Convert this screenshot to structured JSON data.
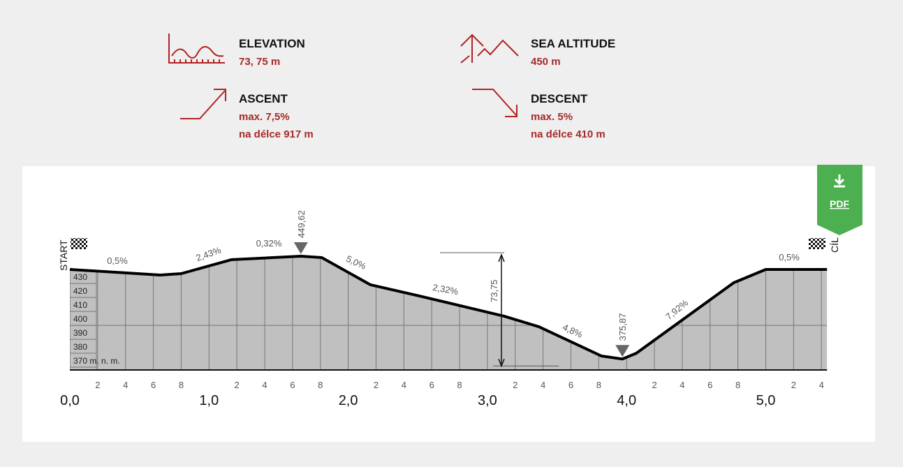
{
  "stats": [
    {
      "title": "ELEVATION",
      "lines": [
        "73, 75 m"
      ]
    },
    {
      "title": "SEA ALTITUDE",
      "lines": [
        "450 m"
      ]
    },
    {
      "title": "ASCENT",
      "lines": [
        "max. 7,5%",
        "na délce 917 m"
      ]
    },
    {
      "title": "DESCENT",
      "lines": [
        "max. 5%",
        "na délce 410 m"
      ]
    }
  ],
  "pdf_button": "PDF",
  "chart_data": {
    "type": "area",
    "start_label": "START",
    "finish_label": "CÍL",
    "x": [
      0,
      0.65,
      0.8,
      1.16,
      1.66,
      1.81,
      2.16,
      2.51,
      3.12,
      3.37,
      3.82,
      3.97,
      4.07,
      4.77,
      5.0,
      5.44
    ],
    "values": [
      440.1,
      436.1,
      437.1,
      447.1,
      449.62,
      448.6,
      429.1,
      421.1,
      406.6,
      399.0,
      378.0,
      375.87,
      380.0,
      430.6,
      440.1,
      440.1
    ],
    "color": "#c0c0c0",
    "line_color": "#000000",
    "xlim": [
      0,
      5.44
    ],
    "ylim": [
      368,
      449.62
    ],
    "xticks": [
      {
        "value": 0,
        "label": "0,0"
      },
      {
        "value": 1,
        "label": "1,0"
      },
      {
        "value": 2,
        "label": "2,0"
      },
      {
        "value": 3,
        "label": "3,0"
      },
      {
        "value": 4,
        "label": "4,0"
      },
      {
        "value": 5,
        "label": "5,0"
      }
    ],
    "xminorticks": [
      {
        "value": 0.2,
        "label": "2"
      },
      {
        "value": 0.4,
        "label": "4"
      },
      {
        "value": 0.6,
        "label": "6"
      },
      {
        "value": 0.8,
        "label": "8"
      },
      {
        "value": 1.2,
        "label": "2"
      },
      {
        "value": 1.4,
        "label": "4"
      },
      {
        "value": 1.6,
        "label": "6"
      },
      {
        "value": 1.8,
        "label": "8"
      },
      {
        "value": 2.2,
        "label": "2"
      },
      {
        "value": 2.4,
        "label": "4"
      },
      {
        "value": 2.6,
        "label": "6"
      },
      {
        "value": 2.8,
        "label": "8"
      },
      {
        "value": 3.2,
        "label": "2"
      },
      {
        "value": 3.4,
        "label": "4"
      },
      {
        "value": 3.6,
        "label": "6"
      },
      {
        "value": 3.8,
        "label": "8"
      },
      {
        "value": 4.2,
        "label": "2"
      },
      {
        "value": 4.4,
        "label": "4"
      },
      {
        "value": 4.6,
        "label": "6"
      },
      {
        "value": 4.8,
        "label": "8"
      },
      {
        "value": 5.2,
        "label": "2"
      },
      {
        "value": 5.4,
        "label": "4"
      }
    ],
    "yticks": [
      {
        "value": 370,
        "label": "370 m. n. m."
      },
      380,
      390,
      400,
      410,
      420,
      430
    ],
    "reference_line": 400,
    "slope_labels": [
      "0,5%",
      "2,43%",
      "0,32%",
      "5,0%",
      "2,32%",
      "4,8%",
      "7,92%",
      "0,5%"
    ],
    "max_marker": {
      "value": 449.62,
      "label": "449,62",
      "x": 1.66
    },
    "min_marker": {
      "value": 375.87,
      "label": "375,87",
      "x": 3.97
    },
    "difference": {
      "value": 73.75,
      "label": "73,75"
    }
  }
}
